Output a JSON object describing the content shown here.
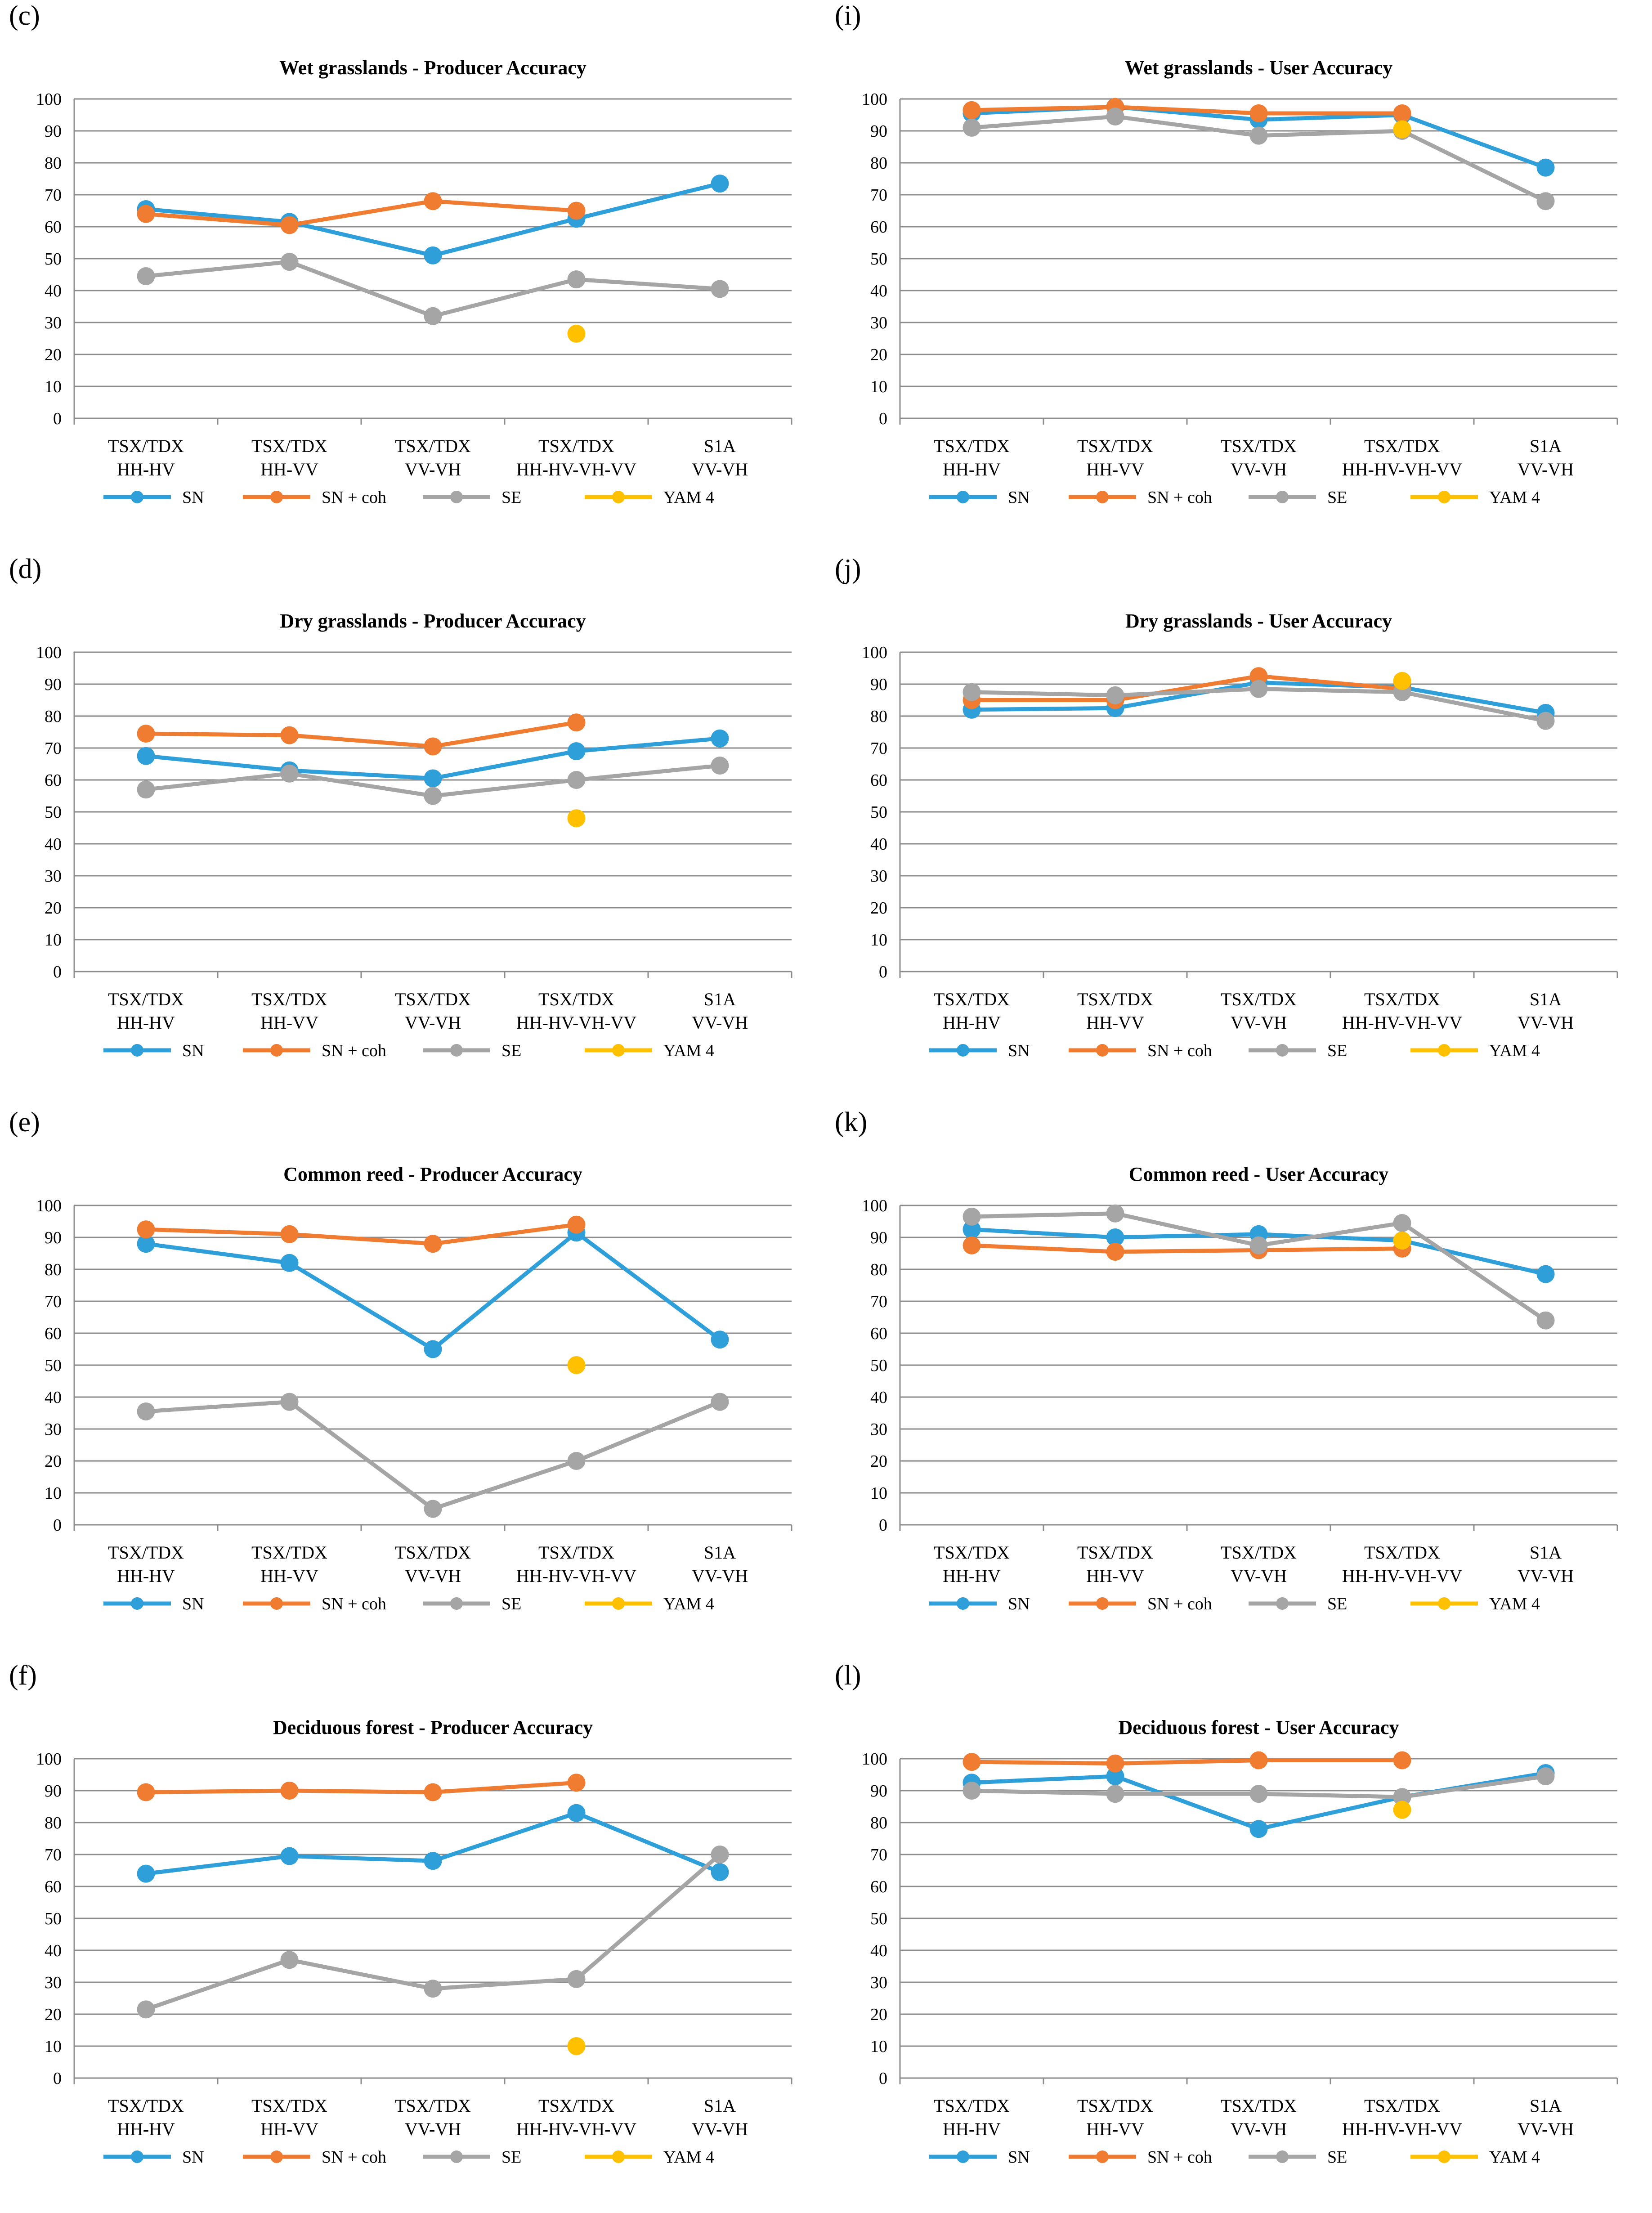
{
  "categories_line1": [
    "TSX/TDX",
    "TSX/TDX",
    "TSX/TDX",
    "TSX/TDX",
    "S1A"
  ],
  "categories_line2": [
    "HH-HV",
    "HH-VV",
    "VV-VH",
    "HH-HV-VH-VV",
    "VV-VH"
  ],
  "series_names": [
    "SN",
    "SN + coh",
    "SE",
    "YAM 4"
  ],
  "series_colors": [
    "#2e9fd8",
    "#ef7c30",
    "#a5a5a5",
    "#ffc000"
  ],
  "y_ticks": [
    "0",
    "10",
    "20",
    "30",
    "40",
    "50",
    "60",
    "70",
    "80",
    "90",
    "100"
  ],
  "chart_data": [
    {
      "label": "(c)",
      "type": "line",
      "title": "Wet grasslands - Producer Accuracy",
      "ylim": [
        0,
        100
      ],
      "series": [
        {
          "name": "SN",
          "values": [
            65.5,
            61.5,
            51,
            62.5,
            73.5
          ]
        },
        {
          "name": "SN + coh",
          "values": [
            64,
            60.5,
            68,
            65,
            null
          ]
        },
        {
          "name": "SE",
          "values": [
            44.5,
            49,
            32,
            43.5,
            40.5
          ]
        },
        {
          "name": "YAM 4",
          "values": [
            null,
            null,
            null,
            26.5,
            null
          ]
        }
      ]
    },
    {
      "label": "(i)",
      "type": "line",
      "title": "Wet grasslands - User Accuracy",
      "ylim": [
        0,
        100
      ],
      "series": [
        {
          "name": "SN",
          "values": [
            95.5,
            97.5,
            93.5,
            95,
            78.5
          ]
        },
        {
          "name": "SN + coh",
          "values": [
            96.5,
            97.5,
            95.5,
            95.5,
            null
          ]
        },
        {
          "name": "SE",
          "values": [
            91,
            94.5,
            88.5,
            90,
            68
          ]
        },
        {
          "name": "YAM 4",
          "values": [
            null,
            null,
            null,
            90.5,
            null
          ]
        }
      ]
    },
    {
      "label": "(d)",
      "type": "line",
      "title": "Dry grasslands - Producer Accuracy",
      "ylim": [
        0,
        100
      ],
      "series": [
        {
          "name": "SN",
          "values": [
            67.5,
            63,
            60.5,
            69,
            73
          ]
        },
        {
          "name": "SN + coh",
          "values": [
            74.5,
            74,
            70.5,
            78,
            null
          ]
        },
        {
          "name": "SE",
          "values": [
            57,
            62,
            55,
            60,
            64.5
          ]
        },
        {
          "name": "YAM 4",
          "values": [
            null,
            null,
            null,
            48,
            null
          ]
        }
      ]
    },
    {
      "label": "(j)",
      "type": "line",
      "title": "Dry grasslands - User Accuracy",
      "ylim": [
        0,
        100
      ],
      "series": [
        {
          "name": "SN",
          "values": [
            82,
            82.5,
            90.5,
            89,
            81
          ]
        },
        {
          "name": "SN + coh",
          "values": [
            85,
            85,
            92.5,
            88.5,
            null
          ]
        },
        {
          "name": "SE",
          "values": [
            87.5,
            86.5,
            88.5,
            87.5,
            78.5
          ]
        },
        {
          "name": "YAM 4",
          "values": [
            null,
            null,
            null,
            91,
            null
          ]
        }
      ]
    },
    {
      "label": "(e)",
      "type": "line",
      "title": "Common reed - Producer Accuracy",
      "ylim": [
        0,
        100
      ],
      "series": [
        {
          "name": "SN",
          "values": [
            88,
            82,
            55,
            91.5,
            58
          ]
        },
        {
          "name": "SN + coh",
          "values": [
            92.5,
            91,
            88,
            94,
            null
          ]
        },
        {
          "name": "SE",
          "values": [
            35.5,
            38.5,
            5,
            20,
            38.5
          ]
        },
        {
          "name": "YAM 4",
          "values": [
            null,
            null,
            null,
            50,
            null
          ]
        }
      ]
    },
    {
      "label": "(k)",
      "type": "line",
      "title": "Common reed - User Accuracy",
      "ylim": [
        0,
        100
      ],
      "series": [
        {
          "name": "SN",
          "values": [
            92.5,
            90,
            91,
            89,
            78.5
          ]
        },
        {
          "name": "SN + coh",
          "values": [
            87.5,
            85.5,
            86,
            86.5,
            null
          ]
        },
        {
          "name": "SE",
          "values": [
            96.5,
            97.5,
            87.5,
            94.5,
            64
          ]
        },
        {
          "name": "YAM 4",
          "values": [
            null,
            null,
            null,
            89,
            null
          ]
        }
      ]
    },
    {
      "label": "(f)",
      "type": "line",
      "title": "Deciduous forest - Producer Accuracy",
      "ylim": [
        0,
        100
      ],
      "series": [
        {
          "name": "SN",
          "values": [
            64,
            69.5,
            68,
            83,
            64.5
          ]
        },
        {
          "name": "SN + coh",
          "values": [
            89.5,
            90,
            89.5,
            92.5,
            null
          ]
        },
        {
          "name": "SE",
          "values": [
            21.5,
            37,
            28,
            31,
            70
          ]
        },
        {
          "name": "YAM 4",
          "values": [
            null,
            null,
            null,
            10,
            null
          ]
        }
      ]
    },
    {
      "label": "(l)",
      "type": "line",
      "title": "Deciduous forest - User Accuracy",
      "ylim": [
        0,
        100
      ],
      "series": [
        {
          "name": "SN",
          "values": [
            92.5,
            94.5,
            78,
            88,
            95.5
          ]
        },
        {
          "name": "SN + coh",
          "values": [
            99,
            98.5,
            99.5,
            99.5,
            null
          ]
        },
        {
          "name": "SE",
          "values": [
            90,
            89,
            89,
            88,
            94.5
          ]
        },
        {
          "name": "YAM 4",
          "values": [
            null,
            null,
            null,
            84,
            null
          ]
        }
      ]
    }
  ]
}
